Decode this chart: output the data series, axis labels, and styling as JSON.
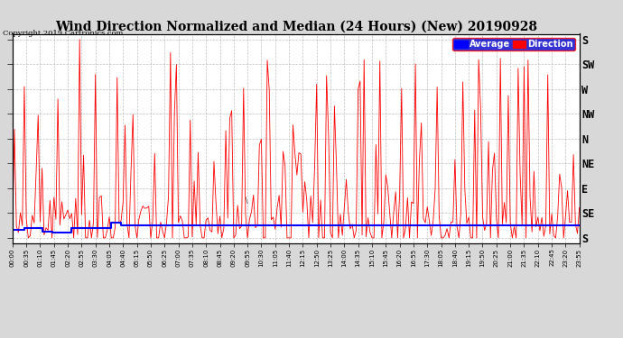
{
  "title": "Wind Direction Normalized and Median (24 Hours) (New) 20190928",
  "copyright": "Copyright 2019 Cartronics.com",
  "ylabel_right": [
    "S",
    "SE",
    "E",
    "NE",
    "N",
    "NW",
    "W",
    "SW",
    "S"
  ],
  "ytick_vals": [
    360,
    315,
    270,
    225,
    180,
    135,
    90,
    45,
    0
  ],
  "ylim": [
    370,
    -10
  ],
  "xlim_minutes": 1435,
  "legend_labels": [
    "Average",
    "Direction"
  ],
  "avg_color": "#0000ff",
  "dir_color": "#ff0000",
  "dark_color": "#222222",
  "bg_color": "#d8d8d8",
  "plot_bg": "#ffffff",
  "grid_color": "#999999",
  "title_fontsize": 10,
  "avg_direction_deg": 338,
  "avg_seed": 12,
  "dir_seed": 7
}
